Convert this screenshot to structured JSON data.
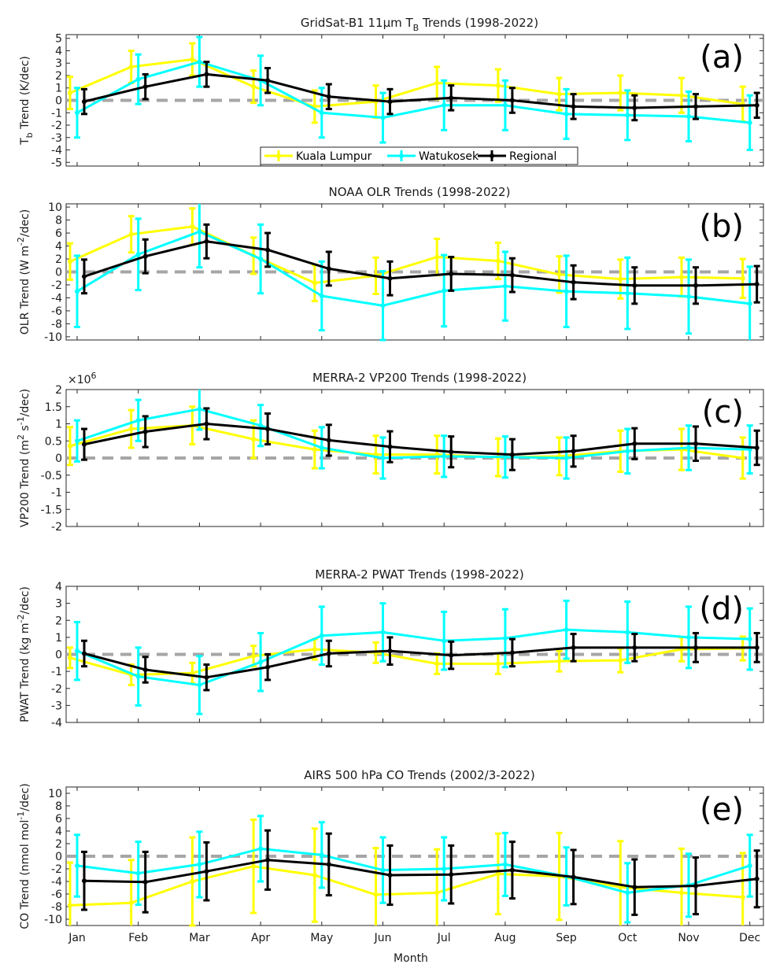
{
  "figure": {
    "xlabel": "Month",
    "months": [
      "Jan",
      "Feb",
      "Mar",
      "Apr",
      "May",
      "Jun",
      "Jul",
      "Aug",
      "Sep",
      "Oct",
      "Nov",
      "Dec"
    ]
  },
  "legend": {
    "entries": [
      {
        "label": "Kuala Lumpur",
        "color": "#ffff00"
      },
      {
        "label": "Watukosek",
        "color": "#00ffff"
      },
      {
        "label": "Regional",
        "color": "#000000"
      }
    ]
  },
  "colors": {
    "kl": "#ffff00",
    "wk": "#00ffff",
    "reg": "#000000",
    "zero_line": "#a6a6a6"
  },
  "chart_data": [
    {
      "type": "line",
      "panel": "(a)",
      "title": "GridSat-B1 11μm T_B Trends (1998-2022)",
      "ylabel": "T_b Trend (K/dec)",
      "ylim": [
        -5.3,
        5.3
      ],
      "yticks": [
        -5,
        -4,
        -3,
        -2,
        -1,
        0,
        1,
        2,
        3,
        4,
        5
      ],
      "x": [
        "Jan",
        "Feb",
        "Mar",
        "Apr",
        "May",
        "Jun",
        "Jul",
        "Aug",
        "Sep",
        "Oct",
        "Nov",
        "Dec"
      ],
      "series": [
        {
          "name": "Kuala Lumpur",
          "values": [
            0.6,
            2.7,
            3.3,
            1.1,
            -0.5,
            -0.1,
            1.4,
            1.2,
            0.5,
            0.6,
            0.4,
            -0.3
          ],
          "err": [
            1.3,
            1.3,
            1.3,
            1.3,
            1.3,
            1.3,
            1.3,
            1.3,
            1.3,
            1.4,
            1.4,
            1.4
          ]
        },
        {
          "name": "Watukosek",
          "values": [
            -1.0,
            1.7,
            3.1,
            1.6,
            -1.0,
            -1.4,
            -0.4,
            -0.4,
            -1.1,
            -1.2,
            -1.3,
            -1.8
          ],
          "err": [
            2.0,
            2.0,
            2.0,
            2.0,
            2.0,
            2.0,
            2.0,
            2.0,
            2.0,
            2.0,
            2.0,
            2.2
          ]
        },
        {
          "name": "Regional",
          "values": [
            -0.1,
            1.1,
            2.1,
            1.6,
            0.3,
            -0.1,
            0.2,
            0.0,
            -0.5,
            -0.6,
            -0.5,
            -0.4
          ],
          "err": [
            1.0,
            1.0,
            1.0,
            1.0,
            1.0,
            1.0,
            1.0,
            1.0,
            1.0,
            1.0,
            1.0,
            1.0
          ]
        }
      ]
    },
    {
      "type": "line",
      "panel": "(b)",
      "title": "NOAA OLR Trends (1998-2022)",
      "ylabel": "OLR Trend (W m^-2/dec)",
      "ylim": [
        -10.5,
        10.5
      ],
      "yticks": [
        -10,
        -8,
        -6,
        -4,
        -2,
        0,
        2,
        4,
        6,
        8,
        10
      ],
      "x": [
        "Jan",
        "Feb",
        "Mar",
        "Apr",
        "May",
        "Jun",
        "Jul",
        "Aug",
        "Sep",
        "Oct",
        "Nov",
        "Dec"
      ],
      "series": [
        {
          "name": "Kuala Lumpur",
          "values": [
            1.6,
            5.8,
            7.0,
            2.5,
            -1.7,
            -0.6,
            2.3,
            1.7,
            -0.4,
            -1.1,
            -0.8,
            -1.0
          ],
          "err": [
            2.8,
            2.8,
            2.8,
            2.8,
            2.8,
            2.8,
            2.8,
            2.8,
            2.8,
            3.0,
            3.0,
            3.0
          ]
        },
        {
          "name": "Watukosek",
          "values": [
            -3.0,
            2.7,
            6.2,
            2.0,
            -3.7,
            -5.2,
            -2.9,
            -2.2,
            -3.0,
            -3.3,
            -3.8,
            -4.9
          ],
          "err": [
            5.5,
            5.5,
            5.5,
            5.3,
            5.3,
            5.3,
            5.5,
            5.3,
            5.5,
            5.5,
            5.7,
            5.7
          ]
        },
        {
          "name": "Regional",
          "values": [
            -0.7,
            2.4,
            4.7,
            3.4,
            0.5,
            -1.0,
            -0.3,
            -0.5,
            -1.6,
            -2.1,
            -2.1,
            -1.9
          ],
          "err": [
            2.6,
            2.6,
            2.6,
            2.6,
            2.6,
            2.6,
            2.6,
            2.6,
            2.6,
            2.8,
            2.8,
            2.8
          ]
        }
      ]
    },
    {
      "type": "line",
      "panel": "(c)",
      "title": "MERRA-2 VP200 Trends (1998-2022)",
      "ylabel": "VP200 Trend (m^2 s^-1/dec)",
      "multiplier": "×10",
      "exponent": "6",
      "ylim": [
        -2,
        2
      ],
      "yticks": [
        -2,
        -1.5,
        -1,
        -0.5,
        0,
        0.5,
        1,
        1.5,
        2
      ],
      "x": [
        "Jan",
        "Feb",
        "Mar",
        "Apr",
        "May",
        "Jun",
        "Jul",
        "Aug",
        "Sep",
        "Oct",
        "Nov",
        "Dec"
      ],
      "series": [
        {
          "name": "Kuala Lumpur",
          "values": [
            0.35,
            0.85,
            0.95,
            0.55,
            0.25,
            0.1,
            0.1,
            0.02,
            0.05,
            0.2,
            0.25,
            0.0
          ],
          "err": [
            0.55,
            0.55,
            0.55,
            0.55,
            0.55,
            0.55,
            0.55,
            0.55,
            0.55,
            0.6,
            0.6,
            0.6
          ]
        },
        {
          "name": "Watukosek",
          "values": [
            0.5,
            1.1,
            1.43,
            0.95,
            0.3,
            0.0,
            0.05,
            0.03,
            0.0,
            0.2,
            0.3,
            0.25
          ],
          "err": [
            0.6,
            0.6,
            0.6,
            0.6,
            0.6,
            0.6,
            0.6,
            0.6,
            0.6,
            0.65,
            0.65,
            0.7
          ]
        },
        {
          "name": "Regional",
          "values": [
            0.4,
            0.77,
            1.0,
            0.85,
            0.52,
            0.33,
            0.18,
            0.1,
            0.2,
            0.42,
            0.42,
            0.3
          ],
          "err": [
            0.45,
            0.45,
            0.45,
            0.45,
            0.45,
            0.45,
            0.45,
            0.45,
            0.45,
            0.45,
            0.5,
            0.5
          ]
        }
      ]
    },
    {
      "type": "line",
      "panel": "(d)",
      "title": "MERRA-2 PWAT Trends (1998-2022)",
      "ylabel": "PWAT Trend (kg m^-2/dec)",
      "ylim": [
        -4,
        4
      ],
      "yticks": [
        -4,
        -3,
        -2,
        -1,
        0,
        1,
        2,
        3,
        4
      ],
      "x": [
        "Jan",
        "Feb",
        "Mar",
        "Apr",
        "May",
        "Jun",
        "Jul",
        "Aug",
        "Sep",
        "Oct",
        "Nov",
        "Dec"
      ],
      "series": [
        {
          "name": "Kuala Lumpur",
          "values": [
            -0.2,
            -1.2,
            -1.1,
            -0.1,
            0.3,
            0.1,
            -0.55,
            -0.55,
            -0.4,
            -0.35,
            0.3,
            0.35
          ],
          "err": [
            0.6,
            0.6,
            0.6,
            0.6,
            0.6,
            0.6,
            0.6,
            0.6,
            0.6,
            0.7,
            0.7,
            0.7
          ]
        },
        {
          "name": "Watukosek",
          "values": [
            0.2,
            -1.3,
            -1.8,
            -0.45,
            1.1,
            1.3,
            0.8,
            0.95,
            1.45,
            1.3,
            1.0,
            0.9
          ],
          "err": [
            1.7,
            1.7,
            1.7,
            1.7,
            1.7,
            1.7,
            1.7,
            1.7,
            1.7,
            1.8,
            1.8,
            1.8
          ]
        },
        {
          "name": "Regional",
          "values": [
            0.05,
            -0.9,
            -1.35,
            -0.75,
            0.05,
            0.2,
            -0.05,
            0.1,
            0.4,
            0.4,
            0.4,
            0.4
          ],
          "err": [
            0.75,
            0.75,
            0.75,
            0.75,
            0.75,
            0.8,
            0.8,
            0.8,
            0.8,
            0.8,
            0.85,
            0.85
          ]
        }
      ]
    },
    {
      "type": "line",
      "panel": "(e)",
      "title": "AIRS 500 hPa CO Trends (2002/3-2022)",
      "ylabel": "CO Trend (nmol mol^-1/dec)",
      "ylim": [
        -11,
        11
      ],
      "yticks": [
        -10,
        -8,
        -6,
        -4,
        -2,
        0,
        2,
        4,
        6,
        8,
        10
      ],
      "x": [
        "Jan",
        "Feb",
        "Mar",
        "Apr",
        "May",
        "Jun",
        "Jul",
        "Aug",
        "Sep",
        "Oct",
        "Nov",
        "Dec"
      ],
      "series": [
        {
          "name": "Kuala Lumpur",
          "values": [
            -7.8,
            -7.4,
            -4.0,
            -1.6,
            -3.0,
            -6.1,
            -5.8,
            -2.8,
            -3.2,
            -4.9,
            -5.8,
            -6.5
          ],
          "err": [
            6.8,
            6.8,
            7.0,
            7.4,
            7.4,
            7.4,
            6.9,
            6.4,
            6.9,
            7.3,
            7.0,
            7.0
          ]
        },
        {
          "name": "Watukosek",
          "values": [
            -1.5,
            -2.7,
            -1.3,
            1.2,
            0.2,
            -2.2,
            -2.0,
            -1.3,
            -3.2,
            -5.8,
            -4.6,
            -1.5
          ],
          "err": [
            4.9,
            5.0,
            5.2,
            5.2,
            5.2,
            5.2,
            5.0,
            5.0,
            4.6,
            4.7,
            5.0,
            4.9
          ]
        },
        {
          "name": "Regional",
          "values": [
            -3.9,
            -4.1,
            -2.4,
            -0.6,
            -1.3,
            -3.0,
            -2.9,
            -2.2,
            -3.3,
            -4.9,
            -4.7,
            -3.6
          ],
          "err": [
            4.6,
            4.8,
            4.6,
            4.7,
            4.9,
            4.7,
            4.6,
            4.5,
            4.3,
            4.4,
            4.5,
            4.5
          ]
        }
      ]
    }
  ]
}
